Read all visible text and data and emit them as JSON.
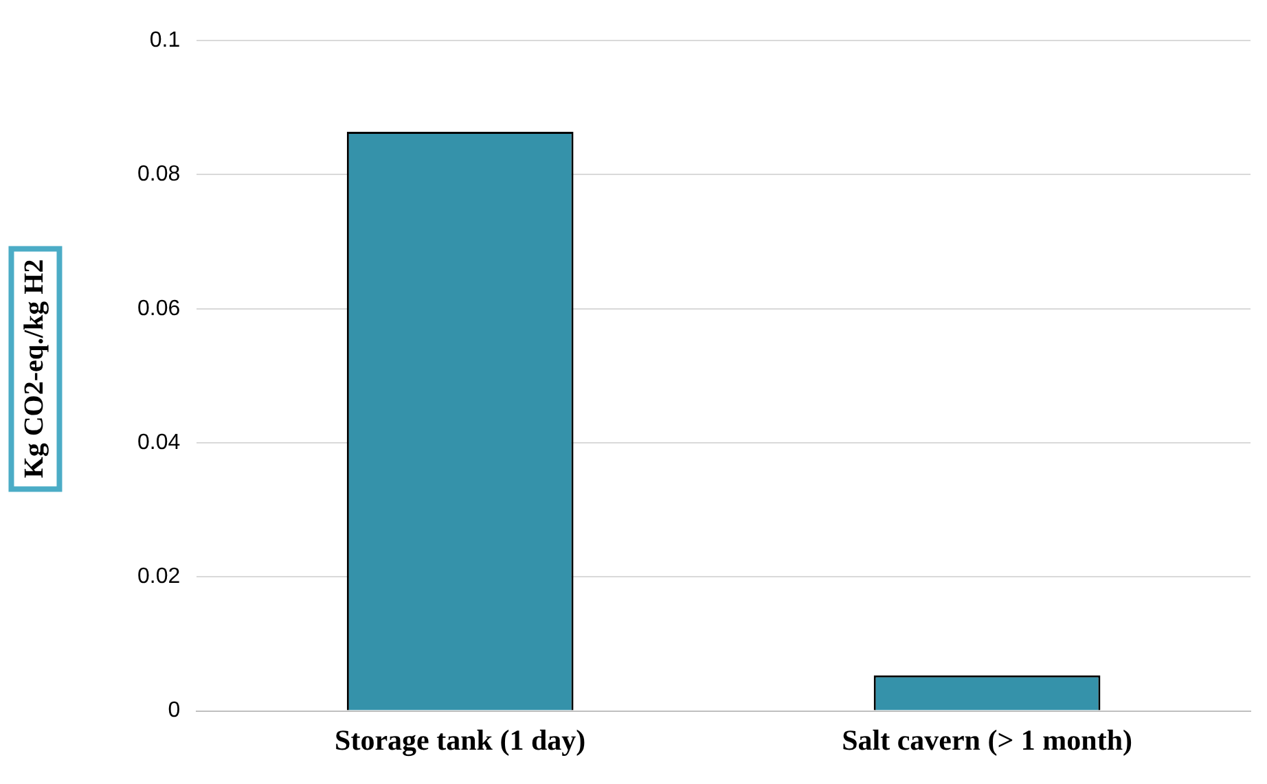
{
  "chart_data": {
    "type": "bar",
    "ylabel": "Kg CO2-eq./kg H2",
    "categories": [
      "Storage tank (1 day)",
      "Salt cavern (> 1 month)"
    ],
    "values": [
      0.0864,
      0.0053
    ],
    "color": "#3592aa",
    "ylim": [
      0,
      0.1
    ],
    "yticks": [
      0,
      0.02,
      0.04,
      0.06,
      0.08,
      0.1
    ],
    "grid": "y"
  }
}
